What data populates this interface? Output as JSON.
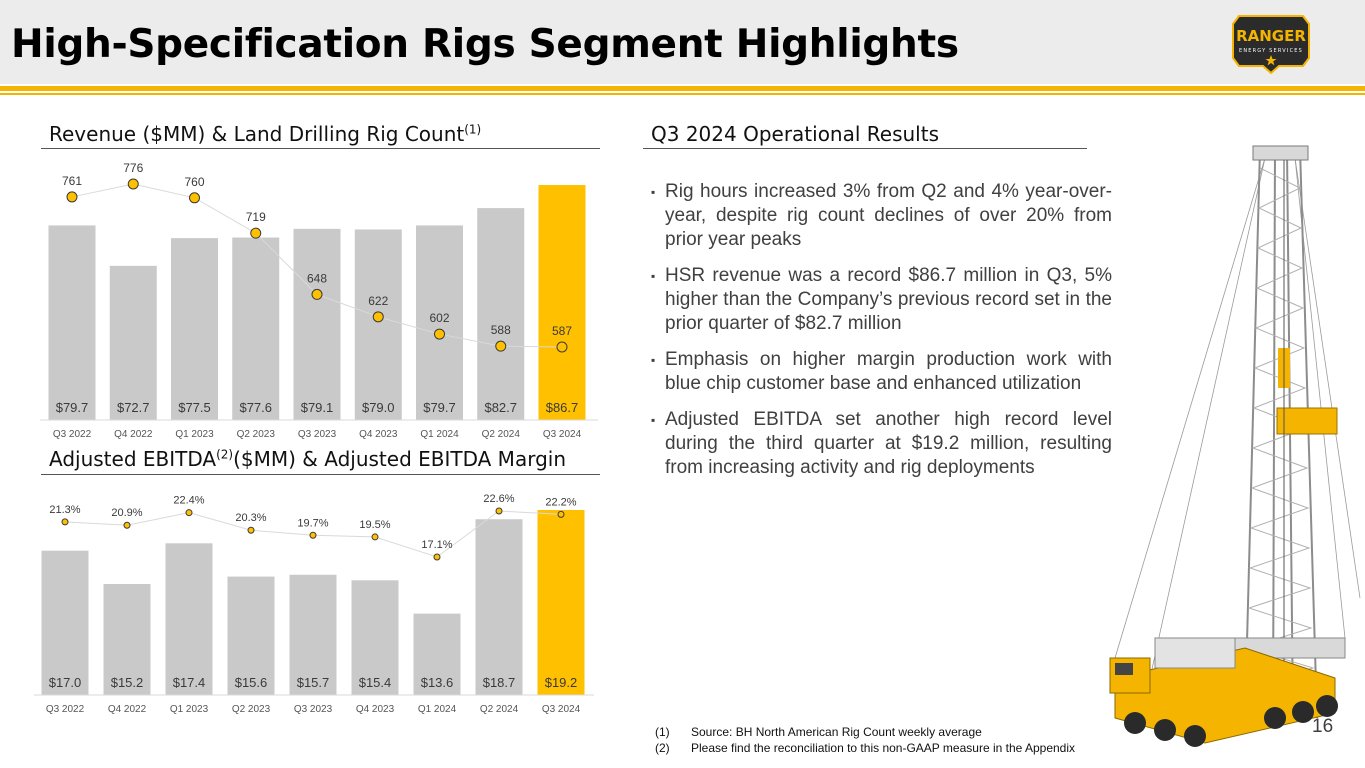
{
  "slide": {
    "title": "High-Specification Rigs Segment Highlights",
    "page_number": "16"
  },
  "logo": {
    "name": "RANGER",
    "tagline": "ENERGY SERVICES"
  },
  "revenue_section": {
    "title": "Revenue ($MM) & Land Drilling Rig Count",
    "footnote_ref": "(1)"
  },
  "ebitda_section": {
    "title_part1": "Adjusted EBITDA",
    "footnote_ref": "(2)",
    "title_part2": "($MM) & Adjusted EBITDA Margin"
  },
  "ops_section": {
    "title": "Q3 2024 Operational Results",
    "bullets": [
      "Rig hours increased 3% from Q2 and 4% year-over-year, despite rig count declines of over 20% from prior year peaks",
      "HSR revenue was a record $86.7 million in Q3, 5% higher than the Company’s previous record set in the prior quarter of $82.7 million",
      "Emphasis on higher margin production work with blue chip customer base and enhanced utilization",
      "Adjusted EBITDA set another high record level during the third quarter at $19.2 million, resulting from increasing activity and rig deployments"
    ]
  },
  "footnotes": [
    {
      "num": "(1)",
      "text": "Source: BH North American Rig Count weekly average"
    },
    {
      "num": "(2)",
      "text": "Please find the reconciliation to this non-GAAP measure in the Appendix"
    }
  ],
  "chart_data": [
    {
      "type": "bar",
      "title": "Revenue ($MM) & Land Drilling Rig Count",
      "categories": [
        "Q3 2022",
        "Q4 2022",
        "Q1 2023",
        "Q2 2023",
        "Q3 2023",
        "Q4 2023",
        "Q1 2024",
        "Q2 2024",
        "Q3 2024"
      ],
      "series": [
        {
          "name": "Revenue ($MM)",
          "kind": "bar",
          "values": [
            79.7,
            72.7,
            77.5,
            77.6,
            79.1,
            79.0,
            79.7,
            82.7,
            86.7
          ],
          "labels": [
            "$79.7",
            "$72.7",
            "$77.5",
            "$77.6",
            "$79.1",
            "$79.0",
            "$79.7",
            "$82.7",
            "$86.7"
          ]
        },
        {
          "name": "Land Drilling Rig Count",
          "kind": "line",
          "values": [
            761,
            776,
            760,
            719,
            648,
            622,
            602,
            588,
            587
          ],
          "labels": [
            "761",
            "776",
            "760",
            "719",
            "648",
            "622",
            "602",
            "588",
            "587"
          ]
        }
      ],
      "highlight_index": 8,
      "colors": {
        "bar": "#c9c9c9",
        "highlight": "#ffc000",
        "marker": "#ffc000",
        "marker_stroke": "#3a3a3a",
        "line": "#d9d9d9"
      }
    },
    {
      "type": "bar",
      "title": "Adjusted EBITDA ($MM) & Adjusted EBITDA Margin",
      "categories": [
        "Q3 2022",
        "Q4 2022",
        "Q1 2023",
        "Q2 2023",
        "Q3 2023",
        "Q4 2023",
        "Q1 2024",
        "Q2 2024",
        "Q3 2024"
      ],
      "series": [
        {
          "name": "Adjusted EBITDA ($MM)",
          "kind": "bar",
          "values": [
            17.0,
            15.2,
            17.4,
            15.6,
            15.7,
            15.4,
            13.6,
            18.7,
            19.2
          ],
          "labels": [
            "$17.0",
            "$15.2",
            "$17.4",
            "$15.6",
            "$15.7",
            "$15.4",
            "$13.6",
            "$18.7",
            "$19.2"
          ]
        },
        {
          "name": "Adjusted EBITDA Margin",
          "kind": "line",
          "values": [
            21.3,
            20.9,
            22.4,
            20.3,
            19.7,
            19.5,
            17.1,
            22.6,
            22.2
          ],
          "labels": [
            "21.3%",
            "20.9%",
            "22.4%",
            "20.3%",
            "19.7%",
            "19.5%",
            "17.1%",
            "22.6%",
            "22.2%"
          ]
        }
      ],
      "highlight_index": 8,
      "colors": {
        "bar": "#c9c9c9",
        "highlight": "#ffc000",
        "marker": "#ffc000",
        "marker_stroke": "#3a3a3a",
        "line": "#d9d9d9"
      }
    }
  ]
}
